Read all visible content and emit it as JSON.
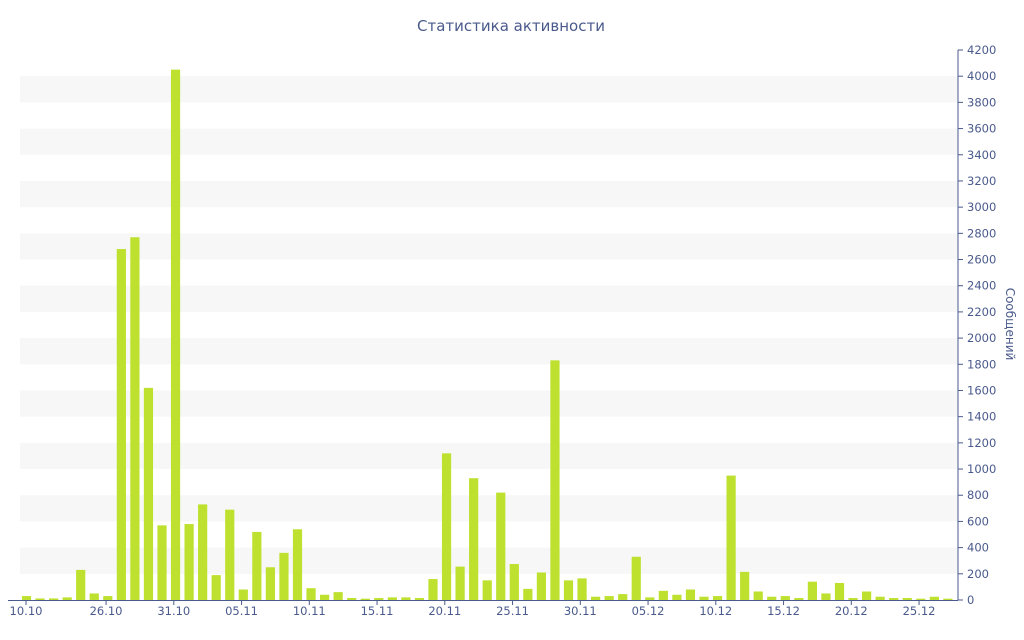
{
  "chart_data": {
    "type": "bar",
    "title": "Статистика активности",
    "xlabel": "",
    "ylabel": "Сообщений",
    "ylim": [
      0,
      4200
    ],
    "ytick_step": 200,
    "y_axis_side": "right",
    "bar_color": "#bde12e",
    "band_color": "#f7f7f7",
    "axis_color": "#4a5a8c",
    "x_ticks": [
      "10.10",
      "26.10",
      "31.10",
      "05.11",
      "10.11",
      "15.11",
      "20.11",
      "25.11",
      "30.11",
      "05.12",
      "10.12",
      "15.12",
      "20.12",
      "25.12"
    ],
    "values": [
      30,
      12,
      12,
      20,
      230,
      50,
      30,
      2680,
      2770,
      1620,
      570,
      4050,
      580,
      730,
      190,
      690,
      80,
      520,
      250,
      360,
      540,
      90,
      40,
      60,
      15,
      10,
      15,
      20,
      20,
      15,
      160,
      1120,
      255,
      930,
      150,
      820,
      275,
      85,
      210,
      1830,
      150,
      165,
      25,
      30,
      45,
      330,
      20,
      70,
      40,
      80,
      25,
      30,
      950,
      215,
      65,
      25,
      30,
      15,
      140,
      50,
      130,
      15,
      65,
      25,
      15,
      15,
      10,
      25,
      10
    ]
  }
}
